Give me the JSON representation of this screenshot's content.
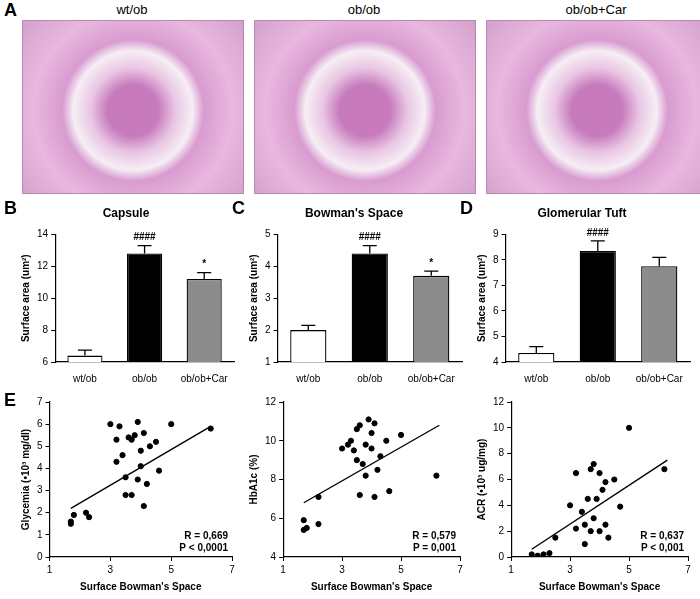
{
  "micrographs": {
    "panel": "A",
    "labels": [
      "wt/ob",
      "ob/ob",
      "ob/ob+Car"
    ]
  },
  "chart_data": [
    {
      "type": "bar",
      "panel": "B",
      "title": "Capsule",
      "y_label": "Surface area (um²)",
      "categories": [
        "wt/ob",
        "ob/ob",
        "ob/ob+Car"
      ],
      "values": [
        6.4,
        12.8,
        11.2
      ],
      "errors": [
        0.35,
        0.5,
        0.4
      ],
      "colors": [
        "#ffffff",
        "#000000",
        "#8c8c8c"
      ],
      "ylim": [
        6,
        14
      ],
      "yticks": [
        6,
        8,
        10,
        12,
        14
      ],
      "grid": false,
      "annotations": [
        {
          "category": "ob/ob",
          "text": "####"
        },
        {
          "category": "ob/ob+Car",
          "text": "*"
        }
      ]
    },
    {
      "type": "bar",
      "panel": "C",
      "title": "Bowman's Space",
      "y_label": "Surface area (um²)",
      "categories": [
        "wt/ob",
        "ob/ob",
        "ob/ob+Car"
      ],
      "values": [
        2.0,
        4.4,
        3.7
      ],
      "errors": [
        0.15,
        0.25,
        0.15
      ],
      "colors": [
        "#ffffff",
        "#000000",
        "#8c8c8c"
      ],
      "ylim": [
        1,
        5
      ],
      "yticks": [
        1,
        2,
        3,
        4,
        5
      ],
      "grid": false,
      "annotations": [
        {
          "category": "ob/ob",
          "text": "####"
        },
        {
          "category": "ob/ob+Car",
          "text": "*"
        }
      ]
    },
    {
      "type": "bar",
      "panel": "D",
      "title": "Glomerular Tuft",
      "y_label": "Surface area (um²)",
      "categories": [
        "wt/ob",
        "ob/ob",
        "ob/ob+Car"
      ],
      "values": [
        4.35,
        8.35,
        7.75
      ],
      "errors": [
        0.25,
        0.4,
        0.35
      ],
      "colors": [
        "#ffffff",
        "#000000",
        "#8c8c8c"
      ],
      "ylim": [
        4,
        9
      ],
      "yticks": [
        4,
        5,
        6,
        7,
        8,
        9
      ],
      "grid": false,
      "annotations": [
        {
          "category": "ob/ob",
          "text": "####"
        }
      ]
    },
    {
      "type": "scatter",
      "panel": "E",
      "x_label": "Surface Bowman's Space",
      "y_label": "Glycemia (•10³ mg/dl)",
      "x": [
        1.7,
        1.7,
        1.8,
        2.2,
        2.3,
        3.0,
        3.2,
        3.2,
        3.3,
        3.4,
        3.5,
        3.5,
        3.6,
        3.7,
        3.7,
        3.8,
        3.9,
        3.9,
        4.0,
        4.0,
        4.1,
        4.1,
        4.2,
        4.3,
        4.5,
        4.6,
        5.0,
        6.3
      ],
      "values": [
        1.6,
        1.5,
        1.9,
        2.0,
        1.8,
        6.0,
        5.3,
        4.3,
        5.9,
        4.6,
        3.6,
        2.8,
        5.4,
        5.3,
        2.8,
        5.5,
        6.1,
        3.5,
        4.8,
        4.1,
        5.6,
        2.3,
        3.3,
        5.0,
        5.2,
        3.9,
        6.0,
        5.8
      ],
      "fit": {
        "x": [
          1.7,
          6.3
        ],
        "y": [
          2.2,
          5.9
        ]
      },
      "color": "#000000",
      "xlim": [
        1,
        7
      ],
      "xticks": [
        1,
        3,
        5,
        7
      ],
      "ylim": [
        0,
        7
      ],
      "yticks": [
        0,
        1,
        2,
        3,
        4,
        5,
        6,
        7
      ],
      "grid": false,
      "annotations": [
        "R = 0,669",
        "P < 0,0001"
      ]
    },
    {
      "type": "scatter",
      "x_label": "Surface Bowman's Space",
      "y_label": "HbA1c (%)",
      "x": [
        1.7,
        1.7,
        1.8,
        2.2,
        2.2,
        3.0,
        3.2,
        3.3,
        3.4,
        3.5,
        3.5,
        3.6,
        3.6,
        3.7,
        3.8,
        3.8,
        3.9,
        4.0,
        4.0,
        4.1,
        4.1,
        4.2,
        4.3,
        4.5,
        4.6,
        5.0,
        6.2
      ],
      "values": [
        5.9,
        5.4,
        5.5,
        5.7,
        7.1,
        9.6,
        9.8,
        10.0,
        9.5,
        10.6,
        9.0,
        10.8,
        7.2,
        8.8,
        9.8,
        8.2,
        11.1,
        10.4,
        9.6,
        10.9,
        7.1,
        8.5,
        9.2,
        10.0,
        7.4,
        10.3,
        8.2
      ],
      "fit": {
        "x": [
          1.7,
          6.3
        ],
        "y": [
          6.8,
          10.8
        ]
      },
      "color": "#000000",
      "xlim": [
        1,
        7
      ],
      "xticks": [
        1,
        3,
        5,
        7
      ],
      "ylim": [
        4,
        12
      ],
      "yticks": [
        4,
        6,
        8,
        10,
        12
      ],
      "grid": false,
      "annotations": [
        "R = 0,579",
        "P = 0,001"
      ]
    },
    {
      "type": "scatter",
      "x_label": "Surface Bowman's Space",
      "y_label": "ACR (•10³ ug/mg)",
      "x": [
        1.7,
        1.9,
        2.1,
        2.3,
        2.5,
        3.0,
        3.2,
        3.2,
        3.4,
        3.5,
        3.5,
        3.6,
        3.7,
        3.7,
        3.8,
        3.8,
        3.9,
        4.0,
        4.0,
        4.1,
        4.2,
        4.2,
        4.3,
        4.5,
        4.7,
        5.0,
        6.2
      ],
      "values": [
        0.2,
        0.1,
        0.2,
        0.3,
        1.5,
        4.0,
        6.5,
        2.2,
        3.5,
        1.0,
        2.5,
        4.5,
        6.8,
        2.0,
        7.2,
        3.0,
        4.5,
        2.0,
        6.5,
        5.2,
        5.8,
        2.5,
        1.5,
        6.0,
        3.9,
        10.0,
        6.8
      ],
      "fit": {
        "x": [
          1.7,
          6.3
        ],
        "y": [
          0.6,
          7.5
        ]
      },
      "color": "#000000",
      "xlim": [
        1,
        7
      ],
      "xticks": [
        1,
        3,
        5,
        7
      ],
      "ylim": [
        0,
        12
      ],
      "yticks": [
        0,
        2,
        4,
        6,
        8,
        10,
        12
      ],
      "grid": false,
      "annotations": [
        "R = 0,637",
        "P < 0,001"
      ]
    }
  ]
}
